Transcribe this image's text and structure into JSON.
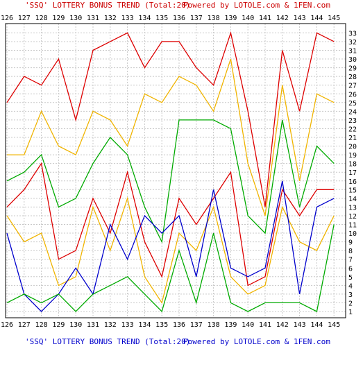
{
  "header": {
    "title": "'SSQ' LOTTERY BONUS TREND (Total:20)",
    "powered_by": "Powered by LOTOLE.com & 1FEN.com"
  },
  "footer": {
    "title": "'SSQ' LOTTERY BONUS TREND (Total:20)",
    "powered_by": "Powered by LOTOLE.com & 1FEN.com"
  },
  "colors": {
    "title": "#cc0000",
    "powered_by": "#0000cc",
    "grid": "#c8c8c8",
    "border": "#000000"
  },
  "chart_data": {
    "type": "line",
    "title": "'SSQ' LOTTERY BONUS TREND (Total:20)",
    "x": [
      "126",
      "127",
      "128",
      "129",
      "130",
      "131",
      "132",
      "133",
      "134",
      "135",
      "136",
      "137",
      "138",
      "139",
      "140",
      "141",
      "142",
      "143",
      "144",
      "145"
    ],
    "xlabel": "",
    "ylabel": "",
    "ylim": [
      1,
      33
    ],
    "yticks": [
      1,
      2,
      3,
      4,
      5,
      6,
      7,
      8,
      9,
      10,
      11,
      12,
      13,
      14,
      15,
      16,
      17,
      18,
      19,
      20,
      21,
      22,
      23,
      24,
      25,
      26,
      27,
      28,
      29,
      30,
      31,
      32,
      33
    ],
    "grid": true,
    "series": [
      {
        "color": "#dd0000",
        "values": [
          25,
          28,
          27,
          30,
          23,
          31,
          32,
          33,
          29,
          32,
          32,
          29,
          27,
          33,
          24,
          13,
          31,
          24,
          33,
          32
        ]
      },
      {
        "color": "#f0b400",
        "values": [
          19,
          19,
          24,
          20,
          19,
          24,
          23,
          20,
          26,
          25,
          28,
          27,
          24,
          30,
          18,
          12,
          27,
          16,
          26,
          25
        ]
      },
      {
        "color": "#00aa00",
        "values": [
          16,
          17,
          19,
          13,
          14,
          18,
          21,
          19,
          13,
          9,
          23,
          23,
          23,
          22,
          12,
          10,
          23,
          13,
          20,
          18
        ]
      },
      {
        "color": "#dd0000",
        "values": [
          13,
          15,
          18,
          7,
          8,
          14,
          10,
          17,
          9,
          5,
          14,
          11,
          14,
          17,
          4,
          5,
          15,
          12,
          15,
          15
        ]
      },
      {
        "color": "#f0b400",
        "values": [
          12,
          9,
          10,
          4,
          5,
          13,
          8,
          14,
          5,
          2,
          10,
          8,
          13,
          5,
          3,
          4,
          13,
          9,
          8,
          12
        ]
      },
      {
        "color": "#0000cc",
        "values": [
          10,
          3,
          1,
          3,
          6,
          3,
          11,
          7,
          12,
          10,
          12,
          5,
          15,
          6,
          5,
          6,
          16,
          3,
          13,
          14
        ]
      },
      {
        "color": "#00aa00",
        "values": [
          2,
          3,
          2,
          3,
          1,
          3,
          4,
          5,
          3,
          1,
          8,
          2,
          10,
          2,
          1,
          2,
          2,
          2,
          1,
          11
        ]
      }
    ]
  }
}
